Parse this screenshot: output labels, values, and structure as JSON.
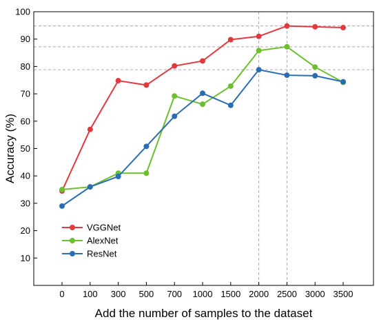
{
  "chart_data": {
    "type": "line",
    "categories": [
      "0",
      "100",
      "300",
      "500",
      "700",
      "1000",
      "1500",
      "2000",
      "2500",
      "3000",
      "3500"
    ],
    "xlabel": "Add the number of samples to the dataset",
    "ylabel": "Accuracy (%)",
    "ylim": [
      0,
      100
    ],
    "yticks": [
      10,
      20,
      30,
      40,
      50,
      60,
      70,
      80,
      90,
      100
    ],
    "grid": false,
    "legend_position": "bottom-left",
    "series": [
      {
        "name": "VGGNet",
        "color": "#e2393e",
        "values": [
          34.5,
          57.0,
          74.8,
          73.2,
          80.2,
          82.0,
          89.8,
          91.0,
          94.8,
          94.5,
          94.2
        ]
      },
      {
        "name": "AlexNet",
        "color": "#6cbf2d",
        "values": [
          35.0,
          36.0,
          41.0,
          41.0,
          69.2,
          66.2,
          72.8,
          85.8,
          87.2,
          79.8,
          74.2
        ]
      },
      {
        "name": "ResNet",
        "color": "#2b6db5",
        "values": [
          29.0,
          36.0,
          39.8,
          50.8,
          61.8,
          70.2,
          65.8,
          78.8,
          76.8,
          76.6,
          74.4
        ]
      }
    ],
    "reference_lines": {
      "horizontal": [
        94.8,
        87.2,
        78.8
      ],
      "vertical_categories": [
        "2000",
        "2500"
      ]
    }
  }
}
